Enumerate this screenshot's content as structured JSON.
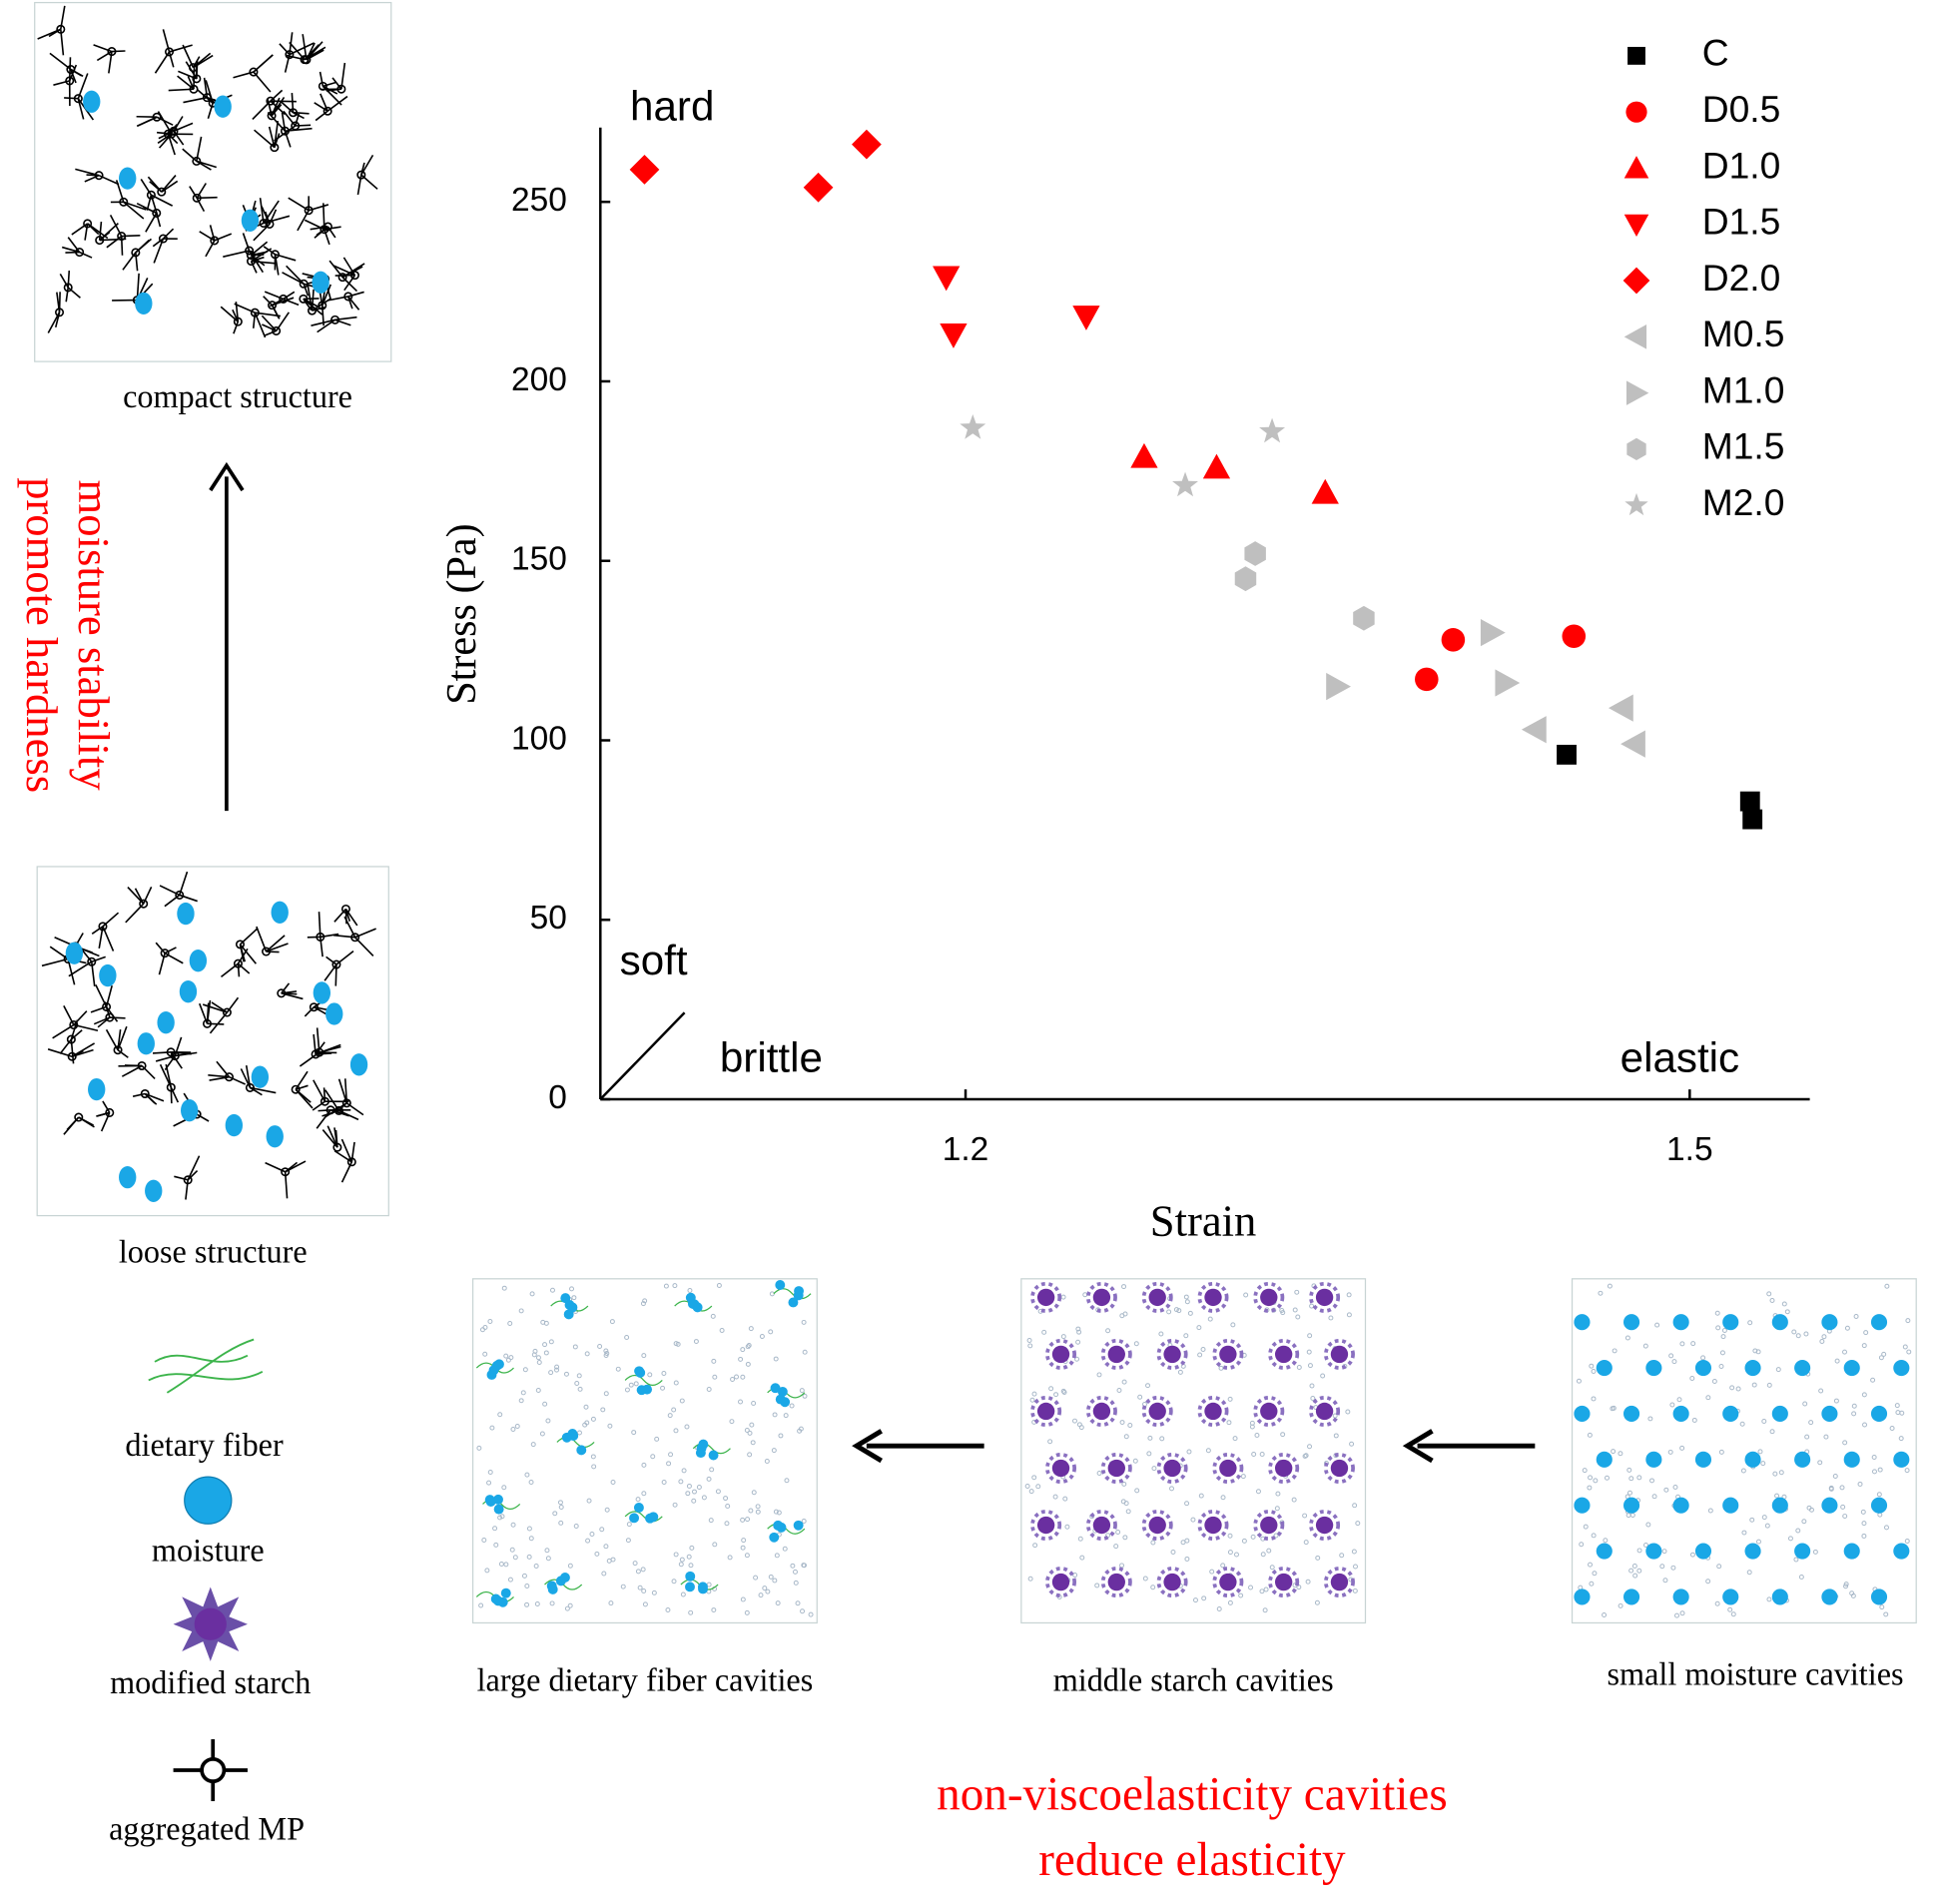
{
  "chart_data": {
    "type": "scatter",
    "x_label": "Strain",
    "y_label": "Stress (Pa)",
    "xlim": [
      1.05,
      1.55
    ],
    "xticks": [
      1.2,
      1.5
    ],
    "ylim": [
      0,
      270
    ],
    "yticks": [
      0,
      50,
      100,
      150,
      200,
      250
    ],
    "annotations": [
      "hard",
      "soft",
      "brittle",
      "elastic"
    ],
    "legend_position": "upper right",
    "series": [
      {
        "name": "C",
        "color": "#000000",
        "marker": "square",
        "x": [
          1.449,
          1.525,
          1.526
        ],
        "values": [
          96,
          83,
          78
        ]
      },
      {
        "name": "D0.5",
        "color": "#ff0000",
        "marker": "circle",
        "x": [
          1.391,
          1.402,
          1.452
        ],
        "values": [
          117,
          128,
          129
        ]
      },
      {
        "name": "D1.0",
        "color": "#ff0000",
        "marker": "triangle-up",
        "x": [
          1.274,
          1.304,
          1.349
        ],
        "values": [
          179,
          176,
          169
        ]
      },
      {
        "name": "D1.5",
        "color": "#ff0000",
        "marker": "triangle-down",
        "x": [
          1.192,
          1.195,
          1.25
        ],
        "values": [
          229,
          213,
          218
        ]
      },
      {
        "name": "D2.0",
        "color": "#ff0000",
        "marker": "diamond",
        "x": [
          1.067,
          1.139,
          1.159
        ],
        "values": [
          259,
          254,
          266
        ]
      },
      {
        "name": "M0.5",
        "color": "#bfbfbf",
        "marker": "triangle-left",
        "x": [
          1.436,
          1.472,
          1.477
        ],
        "values": [
          103,
          109,
          99
        ]
      },
      {
        "name": "M1.0",
        "color": "#bfbfbf",
        "marker": "triangle-right",
        "x": [
          1.354,
          1.418,
          1.424
        ],
        "values": [
          115,
          130,
          116
        ]
      },
      {
        "name": "M1.5",
        "color": "#bfbfbf",
        "marker": "hexagon",
        "x": [
          1.32,
          1.316,
          1.365
        ],
        "values": [
          152,
          145,
          134
        ]
      },
      {
        "name": "M2.0",
        "color": "#bfbfbf",
        "marker": "star",
        "x": [
          1.203,
          1.291,
          1.327
        ],
        "values": [
          187,
          171,
          186
        ]
      }
    ]
  },
  "figure": {
    "compact_label": "compact structure",
    "loose_label": "loose structure",
    "side_note": [
      "moisture stability",
      "promote hardness"
    ],
    "key": [
      "dietary fiber",
      "moisture",
      "modified starch",
      "aggregated MP"
    ],
    "panels": [
      "large dietary fiber cavities",
      "middle starch cavities",
      "small moisture cavities"
    ],
    "bottom_note": [
      "non-viscoelasticity cavities",
      "reduce  elasticity"
    ]
  }
}
